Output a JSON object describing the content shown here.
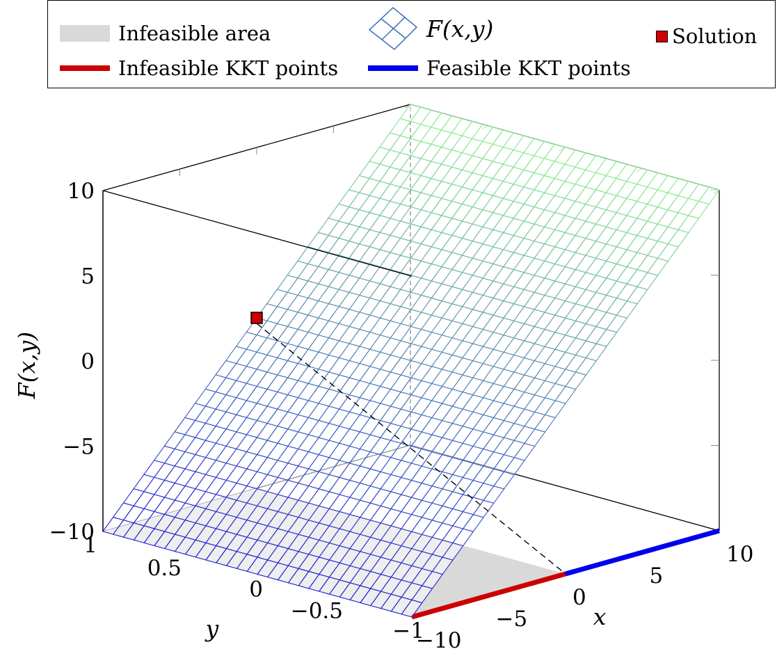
{
  "legend": {
    "infeasible_area": "Infeasible area",
    "surface": "F(x,y)",
    "solution": "Solution",
    "infeasible_kkt": "Infeasible KKT points",
    "feasible_kkt": "Feasible KKT points"
  },
  "colors": {
    "infeasible_area": "#d9d9d9",
    "infeasible_kkt": "#cc0000",
    "feasible_kkt": "#0000ee",
    "solution": "#cc0000",
    "surface_low": "#1a1ad6",
    "surface_high": "#90ee90"
  },
  "chart_data": {
    "type": "surface",
    "zlabel": "F(x,y)",
    "xlabel": "x",
    "ylabel": "y",
    "xlim": [
      -10,
      10
    ],
    "ylim": [
      -1,
      1
    ],
    "zlim": [
      -10,
      10
    ],
    "z_ticks": [
      "10",
      "5",
      "0",
      "−5",
      "−10"
    ],
    "x_ticks": [
      "−10",
      "−5",
      "0",
      "5",
      "10"
    ],
    "y_ticks": [
      "1",
      "0.5",
      "0",
      "−0.5",
      "−1"
    ],
    "surface": {
      "function": "F(x,y) = x",
      "x_samples": 31,
      "y_samples": 31
    },
    "infeasible_area": {
      "x_range": [
        -10,
        0
      ],
      "y_range": [
        -1,
        1
      ]
    },
    "infeasible_kkt_points": {
      "x_range": [
        -10,
        0
      ],
      "y": -1
    },
    "feasible_kkt_points": {
      "x_range": [
        0,
        10
      ],
      "y": -1
    },
    "solution": {
      "x": 0,
      "y": 1,
      "z": 0
    },
    "grid": false
  }
}
